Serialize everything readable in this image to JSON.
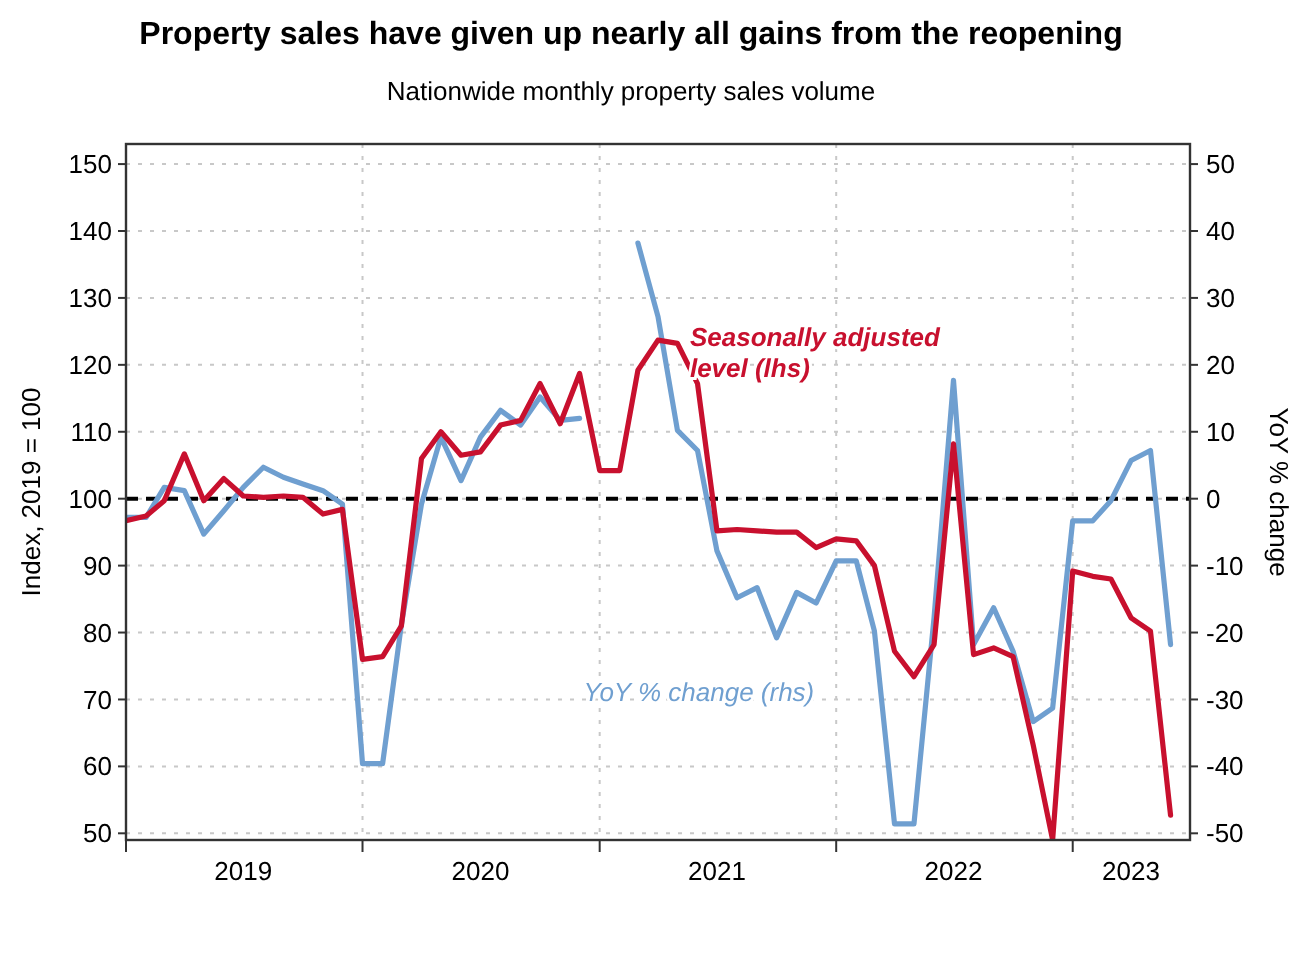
{
  "chart_data": {
    "type": "line",
    "title": "Property sales have given up nearly all gains from the reopening",
    "subtitle": "Nationwide monthly property sales volume",
    "ylabel": "Index, 2019 = 100",
    "y2label": "YoY % change",
    "x": [
      "2019-01",
      "2019-02",
      "2019-03",
      "2019-04",
      "2019-05",
      "2019-06",
      "2019-07",
      "2019-08",
      "2019-09",
      "2019-10",
      "2019-11",
      "2019-12",
      "2020-01",
      "2020-02",
      "2020-03",
      "2020-04",
      "2020-05",
      "2020-06",
      "2020-07",
      "2020-08",
      "2020-09",
      "2020-10",
      "2020-11",
      "2020-12",
      "2021-01",
      "2021-02",
      "2021-03",
      "2021-04",
      "2021-05",
      "2021-06",
      "2021-07",
      "2021-08",
      "2021-09",
      "2021-10",
      "2021-11",
      "2021-12",
      "2022-01",
      "2022-02",
      "2022-03",
      "2022-04",
      "2022-05",
      "2022-06",
      "2022-07",
      "2022-08",
      "2022-09",
      "2022-10",
      "2022-11",
      "2022-12",
      "2023-01",
      "2023-02",
      "2023-03",
      "2023-04",
      "2023-05",
      "2023-06"
    ],
    "series": [
      {
        "name": "Seasonally adjusted level (lhs)",
        "color": "#c8102e",
        "axis": "y",
        "values": [
          96.7,
          97.4,
          99.7,
          106.7,
          99.7,
          103,
          100.4,
          100.2,
          100.4,
          100.2,
          97.7,
          98.4,
          76,
          76.4,
          81,
          106,
          110,
          106.5,
          107,
          111,
          111.7,
          117.2,
          111.2,
          118.7,
          104.2,
          104.2,
          119.2,
          123.7,
          123.2,
          117.2,
          95.2,
          95.4,
          95.2,
          95,
          95,
          92.7,
          94,
          93.7,
          90,
          77.2,
          73.4,
          78.2,
          108.2,
          76.7,
          77.7,
          76.4,
          63.2,
          49,
          89.2,
          88.4,
          88,
          82.2,
          80.2,
          52.7
        ]
      },
      {
        "name": "YoY % change (rhs)",
        "color": "#6f9fd0",
        "axis": "y2",
        "values": [
          -2.8,
          -2.8,
          1.7,
          1.2,
          -5.3,
          -1.8,
          1.7,
          4.7,
          3.2,
          2.2,
          1.2,
          -0.8,
          -39.6,
          -39.6,
          -18.8,
          -0.8,
          9.2,
          2.7,
          9.2,
          13.2,
          11,
          15.2,
          11.7,
          12,
          null,
          null,
          38.2,
          27.2,
          10.2,
          7.2,
          -7.8,
          -14.8,
          -13.3,
          -20.8,
          -14,
          -15.6,
          -9.3,
          -9.3,
          -19.8,
          -48.6,
          -48.6,
          -17.8,
          17.7,
          -21.8,
          -16.3,
          -22.8,
          -33.3,
          -31.3,
          -3.3,
          -3.3,
          -0.3,
          5.7,
          7.2,
          -21.8
        ]
      }
    ],
    "xlim": [
      "2019-01",
      "2023-07"
    ],
    "xticks": [
      {
        "value": "2019-01",
        "label": null
      },
      {
        "value": "2019-07",
        "label": "2019"
      },
      {
        "value": "2020-01",
        "label": null
      },
      {
        "value": "2020-07",
        "label": "2020"
      },
      {
        "value": "2021-01",
        "label": null
      },
      {
        "value": "2021-07",
        "label": "2021"
      },
      {
        "value": "2022-01",
        "label": null
      },
      {
        "value": "2022-07",
        "label": "2022"
      },
      {
        "value": "2023-01",
        "label": null
      },
      {
        "value": "2023-04",
        "label": "2023"
      }
    ],
    "ylim": [
      49,
      153
    ],
    "yticks": [
      50,
      60,
      70,
      80,
      90,
      100,
      110,
      120,
      130,
      140,
      150
    ],
    "y2lim": [
      -51,
      53
    ],
    "y2ticks": [
      -50,
      -40,
      -30,
      -20,
      -10,
      0,
      10,
      20,
      30,
      40,
      50
    ],
    "ref_lines": [
      {
        "axis": "y",
        "value": 100,
        "color": "#000000",
        "line_style": "dashed"
      }
    ],
    "grid": true,
    "legend": false,
    "line_style": "solid",
    "marker": "none"
  }
}
